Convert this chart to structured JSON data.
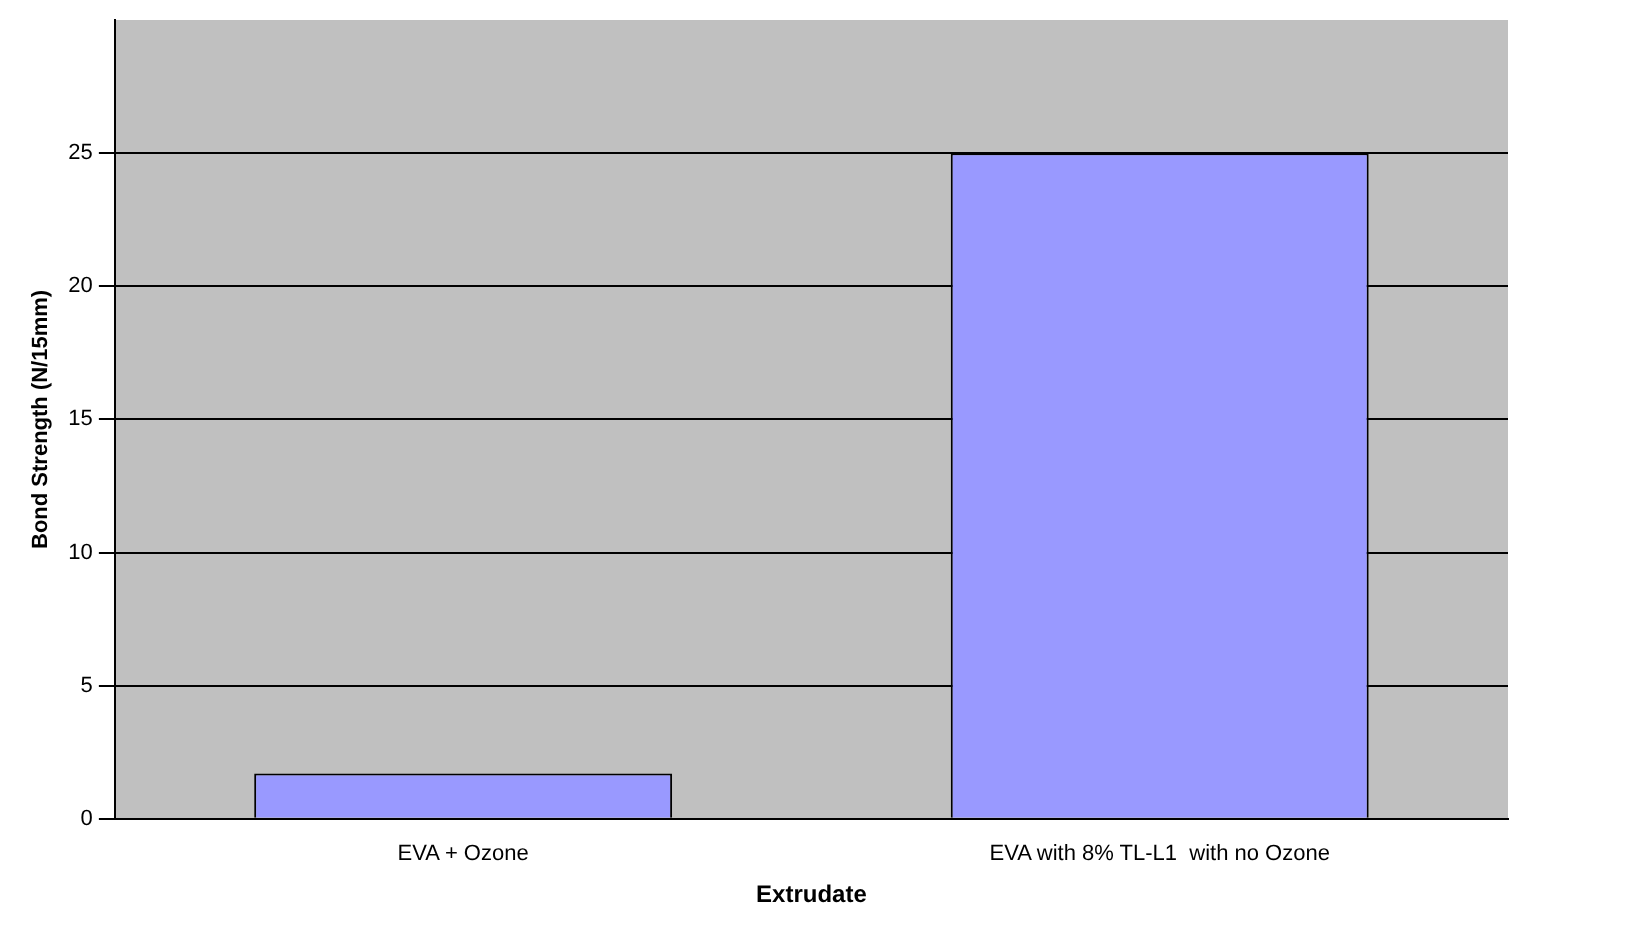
{
  "chart_data": {
    "type": "bar",
    "xlabel": "Extrudate",
    "ylabel": "Bond Strength (N/15mm)",
    "categories": [
      "EVA + Ozone",
      "EVA with 8% TL-L1  with no Ozone"
    ],
    "values": [
      1.7,
      25
    ],
    "color": "#9999ff",
    "ylim": [
      0,
      30
    ],
    "yticks": [
      0,
      5,
      10,
      15,
      20,
      25
    ],
    "grid": "y"
  }
}
